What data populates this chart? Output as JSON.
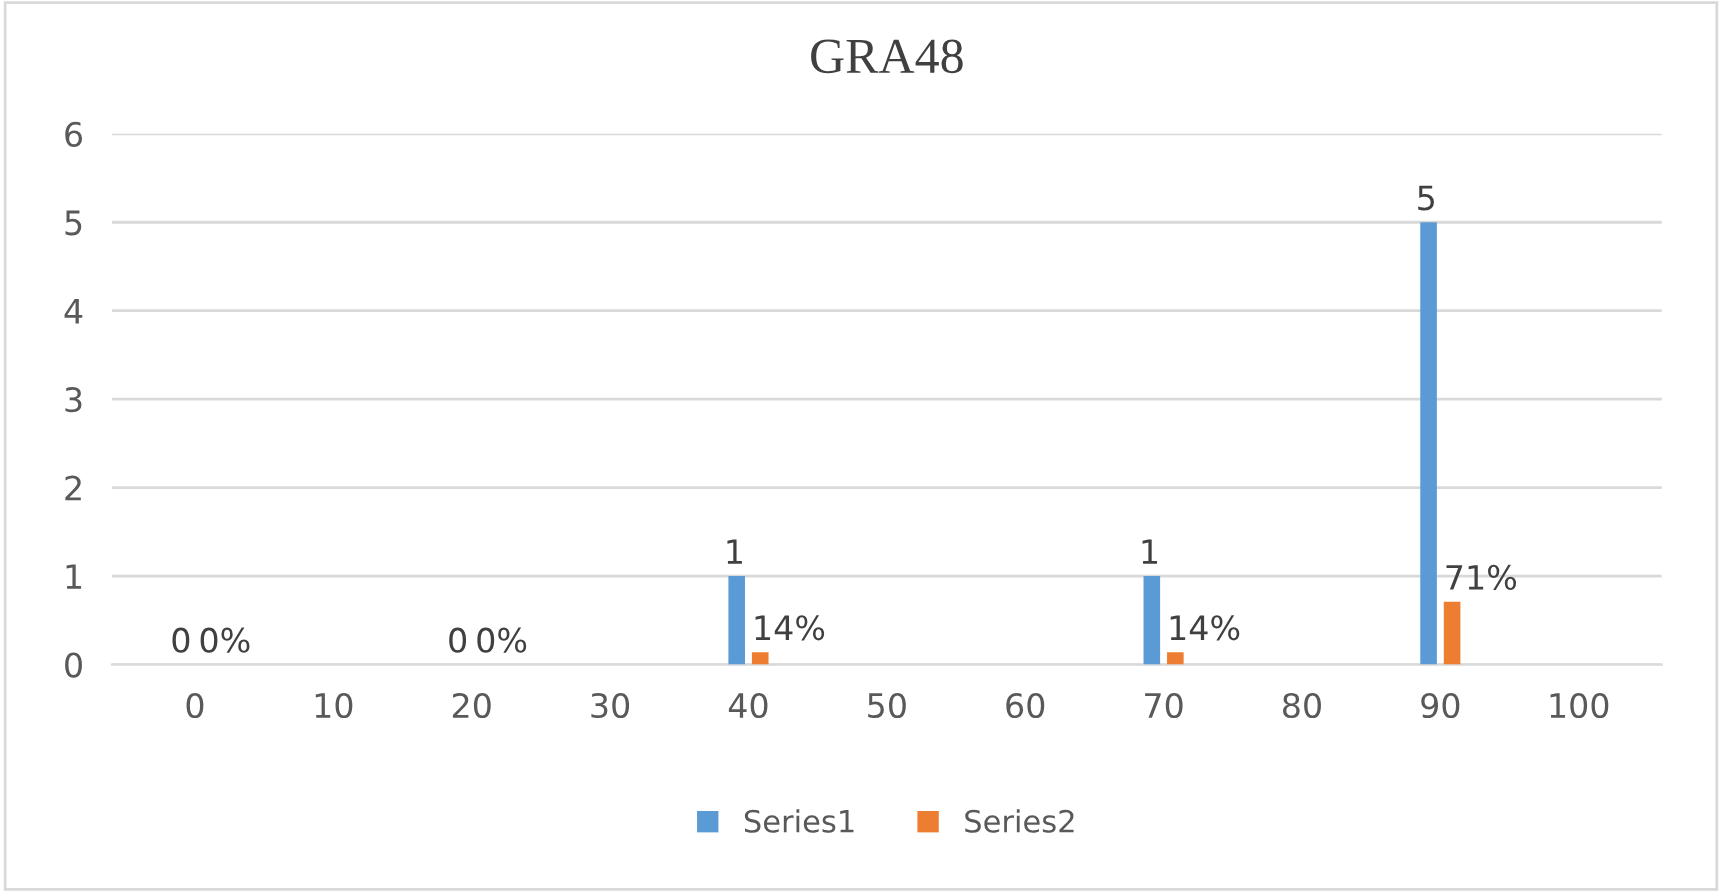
{
  "chart_data": {
    "type": "bar",
    "title": "GRA48",
    "categories": [
      "0",
      "10",
      "20",
      "30",
      "40",
      "50",
      "60",
      "70",
      "80",
      "90",
      "100"
    ],
    "series": [
      {
        "name": "Series1",
        "color": "#5b9bd5",
        "values": [
          0,
          null,
          0,
          null,
          1,
          null,
          null,
          1,
          null,
          5,
          null
        ],
        "value_labels": [
          "0",
          null,
          "0",
          null,
          "1",
          null,
          null,
          "1",
          null,
          "5",
          null
        ]
      },
      {
        "name": "Series2",
        "color": "#ed7d31",
        "values": [
          0,
          null,
          0,
          null,
          0.14,
          null,
          null,
          0.14,
          null,
          0.71,
          null
        ],
        "value_labels": [
          "0%",
          null,
          "0%",
          null,
          "14%",
          null,
          null,
          "14%",
          null,
          "71%",
          null
        ]
      }
    ],
    "ylim": [
      0,
      6
    ],
    "yticks": [
      0,
      1,
      2,
      3,
      4,
      5,
      6
    ],
    "grid": "y",
    "legend": "bottom"
  }
}
